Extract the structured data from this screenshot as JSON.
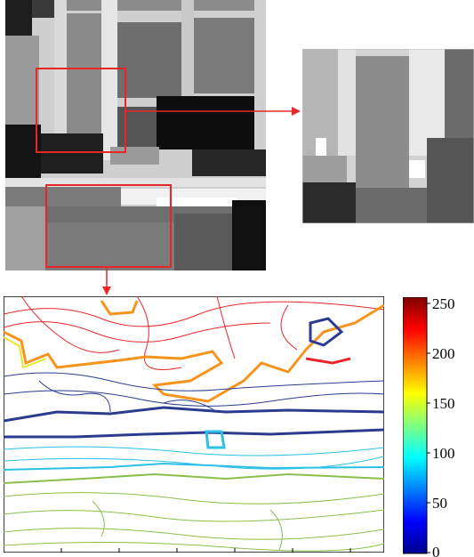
{
  "figure": {
    "main_image": "grayscale depth map of a building facade with windows",
    "zoom_image": "zoomed depth crop of upper window region",
    "contour_image": "contour map of lower region"
  },
  "colorbar": {
    "colormap": "jet",
    "min": 0,
    "max": 250,
    "tick_labels": [
      "250",
      "200",
      "150",
      "100",
      "50",
      "0"
    ]
  },
  "colors": {
    "highlight": "#e8262a",
    "contour_red": "#e8262a",
    "contour_orange": "#f7941d",
    "contour_yellow": "#e7e62a",
    "contour_cyan": "#2cc0e5",
    "contour_blue": "#2b3b8f",
    "contour_green": "#8bbe4a"
  }
}
